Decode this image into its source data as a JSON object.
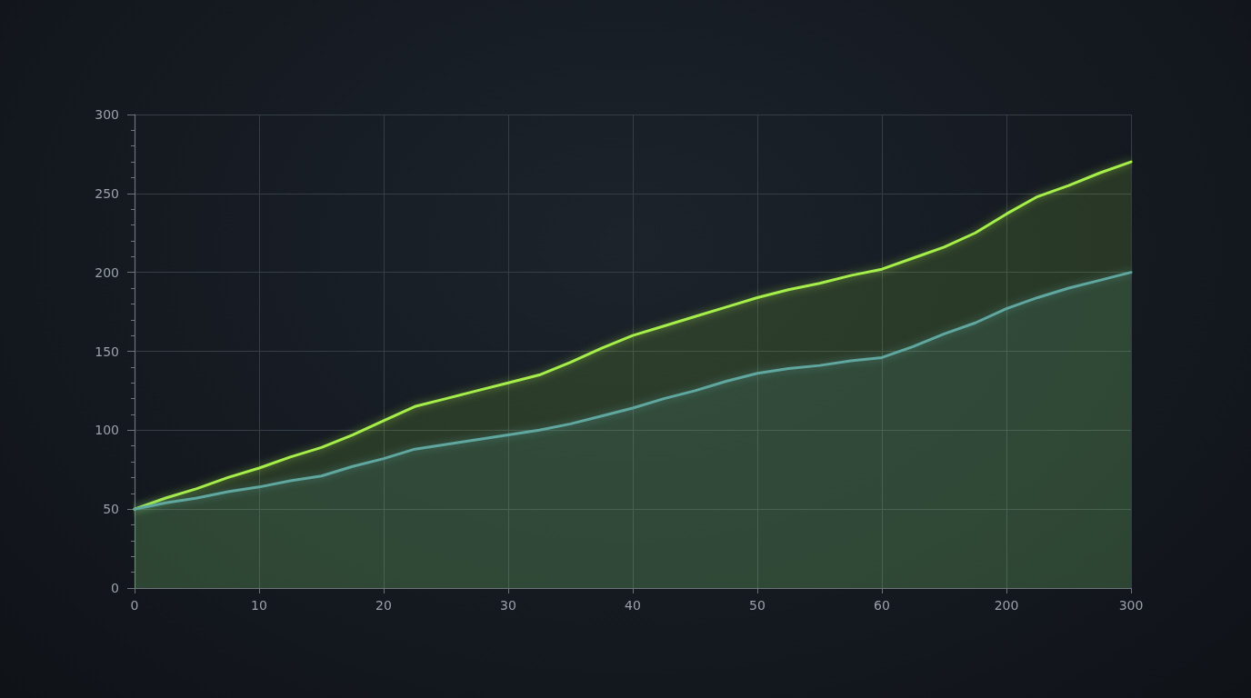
{
  "chart_data": {
    "type": "area",
    "categories": [
      "0",
      null,
      null,
      null,
      "10",
      null,
      null,
      null,
      "20",
      null,
      null,
      null,
      "30",
      null,
      null,
      null,
      "40",
      null,
      null,
      null,
      "50",
      null,
      null,
      null,
      "60",
      null,
      null,
      null,
      "200",
      null,
      null,
      null,
      "300"
    ],
    "ylim": [
      0,
      300
    ],
    "yticks": [
      0,
      {
        "value": 10,
        "label": null
      },
      {
        "value": 20,
        "label": null
      },
      {
        "value": 30,
        "label": null
      },
      {
        "value": 40,
        "label": null
      },
      50,
      {
        "value": 60,
        "label": null
      },
      {
        "value": 70,
        "label": null
      },
      {
        "value": 80,
        "label": null
      },
      {
        "value": 90,
        "label": null
      },
      100,
      {
        "value": 110,
        "label": null
      },
      {
        "value": 120,
        "label": null
      },
      {
        "value": 130,
        "label": null
      },
      {
        "value": 140,
        "label": null
      },
      150,
      {
        "value": 160,
        "label": null
      },
      {
        "value": 170,
        "label": null
      },
      {
        "value": 180,
        "label": null
      },
      {
        "value": 190,
        "label": null
      },
      200,
      {
        "value": 210,
        "label": null
      },
      {
        "value": 220,
        "label": null
      },
      {
        "value": 230,
        "label": null
      },
      {
        "value": 240,
        "label": null
      },
      250,
      {
        "value": 260,
        "label": null
      },
      {
        "value": 270,
        "label": null
      },
      {
        "value": 280,
        "label": null
      },
      {
        "value": 290,
        "label": null
      },
      300
    ],
    "grid": true,
    "series": [
      {
        "color": "#a6ee4a",
        "values": [
          50,
          57,
          63,
          70,
          76,
          83,
          89,
          97,
          106,
          115,
          120,
          125,
          130,
          135,
          143,
          152,
          160,
          166,
          172,
          178,
          184,
          189,
          193,
          198,
          202,
          209,
          216,
          225,
          237,
          248,
          255,
          263,
          270
        ]
      },
      {
        "color": "#5ea79f",
        "values": [
          50,
          54,
          57,
          61,
          64,
          68,
          71,
          77,
          82,
          88,
          91,
          94,
          97,
          100,
          104,
          109,
          114,
          120,
          125,
          131,
          136,
          139,
          141,
          144,
          146,
          153,
          161,
          168,
          177,
          184,
          190,
          195,
          200
        ]
      }
    ]
  }
}
